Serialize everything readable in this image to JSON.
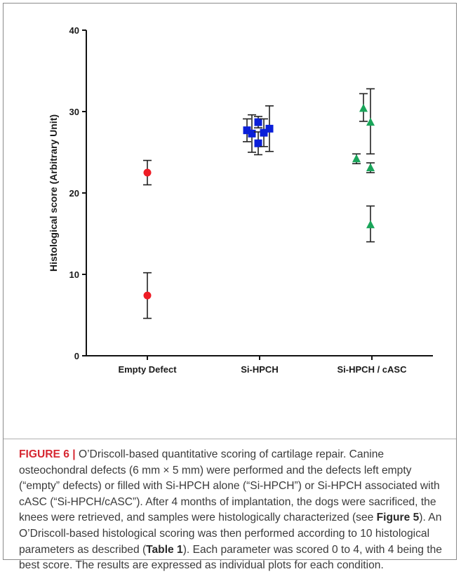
{
  "chart_data": {
    "type": "scatter",
    "title": "",
    "xlabel": "",
    "ylabel": "Histological score (Arbitrary Unit)",
    "ylim": [
      0,
      40
    ],
    "yticks": [
      0,
      10,
      20,
      30,
      40
    ],
    "categories": [
      "Empty Defect",
      "Si-HPCH",
      "Si-HPCH / cASC"
    ],
    "grid": false,
    "legend": "none",
    "series": [
      {
        "category": "Empty Defect",
        "marker": "circle",
        "color": "#ee1c25",
        "points": [
          {
            "offset": 0.0,
            "y": 22.5,
            "err_low": 21.0,
            "err_high": 24.0
          },
          {
            "offset": 0.0,
            "y": 7.4,
            "err_low": 4.6,
            "err_high": 10.2
          }
        ]
      },
      {
        "category": "Si-HPCH",
        "marker": "square",
        "color": "#0a1fd9",
        "points": [
          {
            "offset": -0.36,
            "y": 27.7,
            "err_low": 26.3,
            "err_high": 29.1
          },
          {
            "offset": -0.22,
            "y": 27.3,
            "err_low": 25.0,
            "err_high": 29.6
          },
          {
            "offset": -0.04,
            "y": 26.1,
            "err_low": 24.7,
            "err_high": 27.5
          },
          {
            "offset": -0.04,
            "y": 28.7,
            "err_low": 28.0,
            "err_high": 29.4
          },
          {
            "offset": 0.12,
            "y": 27.4,
            "err_low": 25.7,
            "err_high": 29.1
          },
          {
            "offset": 0.28,
            "y": 27.9,
            "err_low": 25.1,
            "err_high": 30.7
          }
        ]
      },
      {
        "category": "Si-HPCH / cASC",
        "marker": "triangle",
        "color": "#1aa55a",
        "points": [
          {
            "offset": -0.44,
            "y": 24.2,
            "err_low": 23.6,
            "err_high": 24.8
          },
          {
            "offset": -0.24,
            "y": 30.4,
            "err_low": 28.8,
            "err_high": 32.2
          },
          {
            "offset": -0.04,
            "y": 23.1,
            "err_low": 22.5,
            "err_high": 23.7
          },
          {
            "offset": -0.04,
            "y": 16.1,
            "err_low": 14.0,
            "err_high": 18.4
          },
          {
            "offset": -0.04,
            "y": 28.7,
            "err_low": 24.8,
            "err_high": 32.8
          }
        ]
      }
    ]
  },
  "caption": {
    "label": "FIGURE 6 |",
    "text_1": " O’Driscoll-based quantitative scoring of cartilage repair. Canine osteochondral defects (6 mm × 5 mm) were performed and the defects left empty (“empty” defects) or filled with Si-HPCH alone (“Si-HPCH”) or Si-HPCH associated with cASC (“Si-HPCH/cASC”). After 4 months of implantation, the dogs were sacrificed, the knees were retrieved, and samples were histologically characterized (see ",
    "ref_1": "Figure 5",
    "text_2": "). An O’Driscoll-based histological scoring was then performed according to 10 histological parameters as described (",
    "ref_2": "Table 1",
    "text_3": "). Each parameter was scored 0 to 4, with 4 being the best score. The results are expressed as individual plots for each condition."
  }
}
